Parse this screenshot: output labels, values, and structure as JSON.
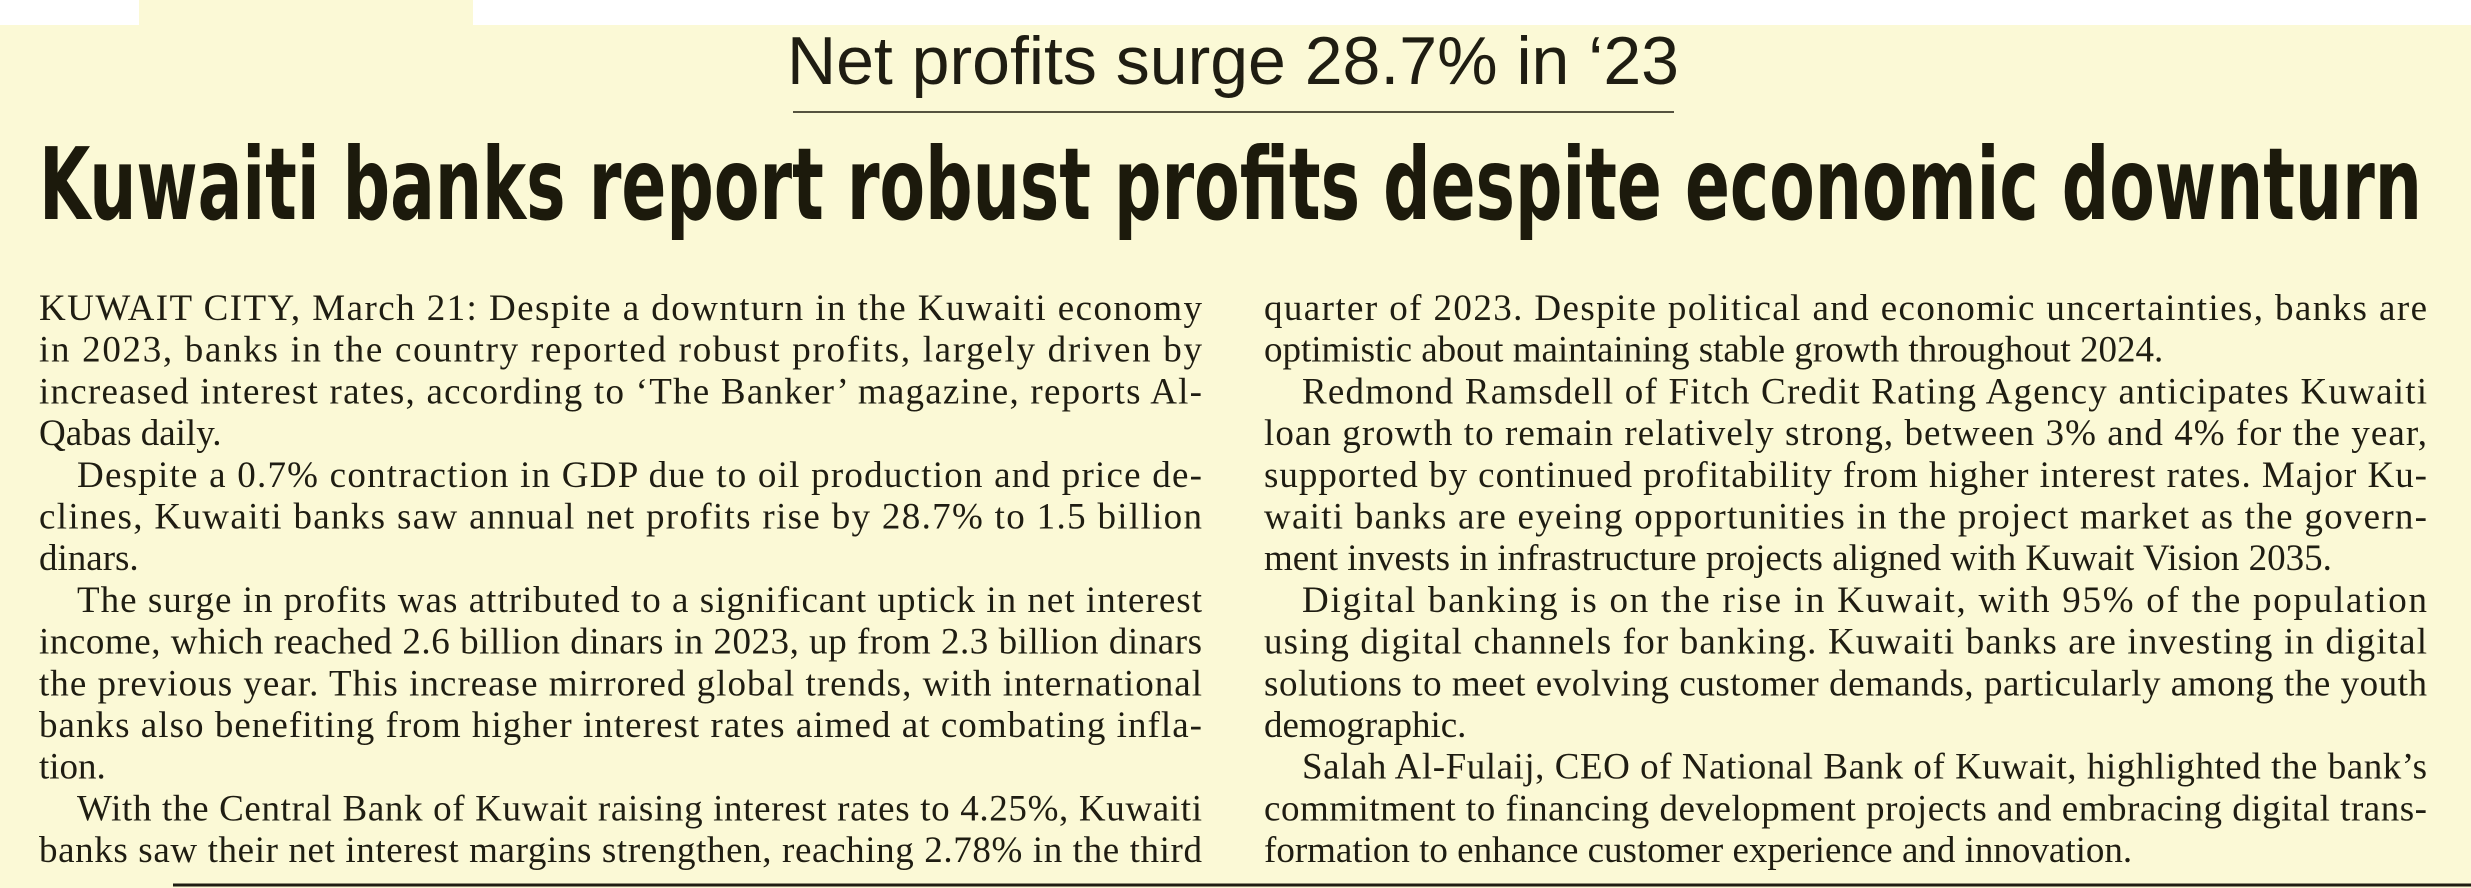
{
  "kicker": "Net profits surge 28.7% in ‘23",
  "headline": "Kuwaiti banks report robust profits despite economic downturn",
  "columns": [
    {
      "paragraphs": [
        {
          "lines": [
            "KUWAIT CITY, March 21: Despite a downturn in the Kuwaiti economy",
            "in 2023, banks in the country reported robust profits, largely driven by",
            "increased interest rates, according to ‘The Banker’ magazine, reports Al-",
            "Qabas daily."
          ]
        },
        {
          "lines": [
            "Despite a 0.7% contraction in GDP due to oil production and price de-",
            "clines, Kuwaiti banks saw annual net profits rise by 28.7% to 1.5 billion",
            "dinars."
          ]
        },
        {
          "lines": [
            "The surge in profits was attributed to a significant uptick in net interest",
            "income, which reached 2.6 billion dinars in 2023, up from 2.3 billion dinars",
            "the previous year. This increase mirrored global trends, with international",
            "banks also benefiting from higher interest rates aimed at combating infla-",
            "tion."
          ]
        },
        {
          "lines": [
            "With the Central Bank of Kuwait raising interest rates to 4.25%, Kuwaiti",
            "banks saw their net interest margins strengthen, reaching 2.78% in the third"
          ]
        }
      ]
    },
    {
      "paragraphs": [
        {
          "lines": [
            "quarter of 2023. Despite political and economic uncertainties, banks are",
            "optimistic about maintaining stable growth throughout 2024."
          ]
        },
        {
          "lines": [
            "Redmond Ramsdell of Fitch Credit Rating Agency anticipates Kuwaiti",
            "loan growth to remain relatively strong, between 3% and 4% for the year,",
            "supported by continued profitability from higher interest rates. Major Ku-",
            "waiti banks are eyeing opportunities in the project market as the govern-",
            "ment invests in infrastructure projects aligned with Kuwait Vision 2035."
          ]
        },
        {
          "lines": [
            "Digital banking is on the rise in Kuwait, with 95% of the population",
            "using digital channels for banking. Kuwaiti banks are investing in digital",
            "solutions to meet evolving customer demands, particularly among the youth",
            "demographic."
          ]
        },
        {
          "lines": [
            "Salah Al-Fulaij, CEO of National Bank of Kuwait, highlighted the bank’s",
            "commitment to financing development projects and embracing digital trans-",
            "formation to enhance customer experience and innovation."
          ]
        }
      ]
    }
  ]
}
